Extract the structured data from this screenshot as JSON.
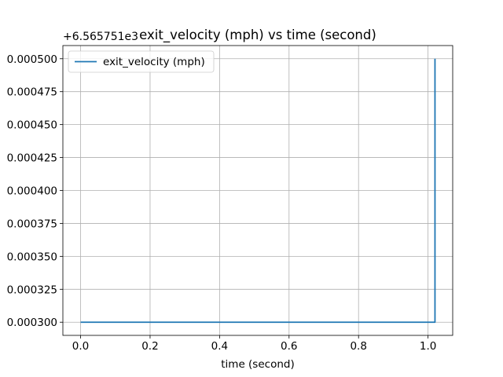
{
  "chart_data": {
    "type": "line",
    "title": "exit_velocity (mph) vs time (second)",
    "xlabel": "time (second)",
    "ylabel": "",
    "offset_text": "+6.565751e3",
    "xlim": [
      -0.051,
      1.071
    ],
    "ylim": [
      0.00029,
      0.00051
    ],
    "xticks": [
      0.0,
      0.2,
      0.4,
      0.6,
      0.8,
      1.0
    ],
    "xtick_labels": [
      "0.0",
      "0.2",
      "0.4",
      "0.6",
      "0.8",
      "1.0"
    ],
    "yticks": [
      0.0003,
      0.000325,
      0.00035,
      0.000375,
      0.0004,
      0.000425,
      0.00045,
      0.000475,
      0.0005
    ],
    "ytick_labels": [
      "0.000300",
      "0.000325",
      "0.000350",
      "0.000375",
      "0.000400",
      "0.000425",
      "0.000450",
      "0.000475",
      "0.000500"
    ],
    "grid": true,
    "legend_position": "top-left",
    "series": [
      {
        "name": "exit_velocity (mph)",
        "color": "#1f77b4",
        "x": [
          0.0,
          1.01,
          1.02,
          1.02
        ],
        "y": [
          0.0003,
          0.0003,
          0.0003,
          0.0005
        ]
      }
    ]
  }
}
